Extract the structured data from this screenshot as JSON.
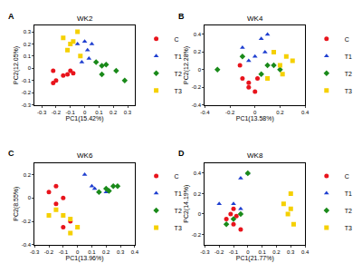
{
  "chart_data": [
    {
      "type": "scatter",
      "panel_label": "A",
      "title": "WK2",
      "x_label": "PC1(15.42%)",
      "y_label": "PC2(12.05%)",
      "xlim": [
        -0.35,
        0.35
      ],
      "xticks": [
        -0.3,
        -0.2,
        -0.1,
        0,
        0.1,
        0.2,
        0.3
      ],
      "ylim": [
        -0.3,
        0.35
      ],
      "yticks": [
        -0.3,
        -0.2,
        -0.1,
        0,
        0.1,
        0.2,
        0.3
      ],
      "grid": false,
      "legend": "right",
      "series": [
        {
          "name": "C",
          "color": "#e8141c",
          "marker": "circle",
          "x": [
            -0.22,
            -0.2,
            -0.15,
            -0.12,
            -0.1,
            -0.08,
            -0.22
          ],
          "y": [
            -0.12,
            -0.1,
            -0.06,
            -0.05,
            -0.02,
            -0.04,
            -0.02
          ]
        },
        {
          "name": "T1",
          "color": "#1f3fd0",
          "marker": "triangle-up",
          "x": [
            -0.05,
            0,
            0.02,
            0.05,
            -0.02,
            0.03
          ],
          "y": [
            0.2,
            0.22,
            0.15,
            0.2,
            0.05,
            0.08
          ]
        },
        {
          "name": "T2",
          "color": "#1a8a1a",
          "marker": "diamond",
          "x": [
            0.08,
            0.12,
            0.15,
            0.22,
            0.28,
            0.12
          ],
          "y": [
            0.05,
            0.02,
            0.03,
            -0.02,
            -0.1,
            -0.05
          ]
        },
        {
          "name": "T3",
          "color": "#f5d000",
          "marker": "square",
          "x": [
            -0.15,
            -0.12,
            -0.1,
            -0.05,
            -0.03,
            -0.08
          ],
          "y": [
            0.25,
            0.15,
            0.2,
            0.3,
            0.1,
            0.22
          ]
        }
      ]
    },
    {
      "type": "scatter",
      "panel_label": "B",
      "title": "WK4",
      "x_label": "PC1(13.58%)",
      "y_label": "PC2(12.28%)",
      "xlim": [
        -0.4,
        0.4
      ],
      "xticks": [
        -0.4,
        -0.2,
        0,
        0.2,
        0.4
      ],
      "ylim": [
        -0.4,
        0.5
      ],
      "yticks": [
        -0.4,
        -0.2,
        0,
        0.2,
        0.4
      ],
      "grid": false,
      "legend": "right",
      "series": [
        {
          "name": "C",
          "color": "#e8141c",
          "marker": "circle",
          "x": [
            -0.1,
            -0.05,
            0,
            -0.05,
            0.02,
            -0.12
          ],
          "y": [
            -0.1,
            -0.2,
            -0.25,
            -0.15,
            -0.1,
            0.05
          ]
        },
        {
          "name": "T1",
          "color": "#1f3fd0",
          "marker": "triangle-up",
          "x": [
            -0.1,
            0.05,
            0.1,
            0.08,
            0,
            -0.05
          ],
          "y": [
            0.25,
            0.35,
            0.4,
            0.2,
            0.15,
            0.1
          ]
        },
        {
          "name": "T2",
          "color": "#1a8a1a",
          "marker": "diamond",
          "x": [
            -0.3,
            -0.1,
            0.1,
            0.15,
            0.2,
            0.05
          ],
          "y": [
            0,
            0.15,
            0.05,
            0.05,
            0,
            -0.05
          ]
        },
        {
          "name": "T3",
          "color": "#f5d000",
          "marker": "square",
          "x": [
            0.2,
            0.25,
            0.3,
            0.22,
            0.1,
            0.15
          ],
          "y": [
            0.05,
            0.15,
            0.1,
            -0.05,
            -0.1,
            0.2
          ]
        }
      ]
    },
    {
      "type": "scatter",
      "panel_label": "C",
      "title": "WK6",
      "x_label": "PC1(13.96%)",
      "y_label": "PC2(8.55%)",
      "xlim": [
        -0.3,
        0.4
      ],
      "xticks": [
        -0.3,
        -0.2,
        -0.1,
        0,
        0.1,
        0.2,
        0.3,
        0.4
      ],
      "ylim": [
        -0.4,
        0.3
      ],
      "yticks": [
        -0.4,
        -0.2,
        0,
        0.2
      ],
      "grid": false,
      "legend": "right",
      "series": [
        {
          "name": "C",
          "color": "#e8141c",
          "marker": "circle",
          "x": [
            -0.2,
            -0.15,
            -0.1,
            -0.15,
            -0.05,
            -0.1
          ],
          "y": [
            0.05,
            0.1,
            0,
            -0.05,
            -0.2,
            -0.25
          ]
        },
        {
          "name": "T1",
          "color": "#1f3fd0",
          "marker": "triangle-up",
          "x": [
            0.05,
            0.1,
            0.15,
            0.12,
            0.2
          ],
          "y": [
            0.2,
            0.1,
            0.05,
            0.08,
            0.05
          ]
        },
        {
          "name": "T2",
          "color": "#1a8a1a",
          "marker": "diamond",
          "x": [
            0.15,
            0.2,
            0.25,
            0.28,
            0.22
          ],
          "y": [
            0.05,
            0.08,
            0.1,
            0.1,
            0.06
          ]
        },
        {
          "name": "T3",
          "color": "#f5d000",
          "marker": "square",
          "x": [
            -0.15,
            -0.1,
            -0.05,
            -0.05,
            -0.2,
            0
          ],
          "y": [
            -0.1,
            -0.15,
            -0.18,
            -0.3,
            -0.15,
            -0.25
          ]
        }
      ]
    },
    {
      "type": "scatter",
      "panel_label": "D",
      "title": "WK8",
      "x_label": "PC1(21.77%)",
      "y_label": "PC2(14.19%)",
      "xlim": [
        -0.3,
        0.4
      ],
      "xticks": [
        -0.3,
        -0.2,
        -0.1,
        0,
        0.1,
        0.2,
        0.3,
        0.4
      ],
      "ylim": [
        -0.3,
        0.5
      ],
      "yticks": [
        -0.2,
        0,
        0.2,
        0.4
      ],
      "grid": false,
      "legend": "right",
      "series": [
        {
          "name": "C",
          "color": "#e8141c",
          "marker": "circle",
          "x": [
            -0.15,
            -0.1,
            -0.05,
            -0.1,
            -0.08,
            -0.12
          ],
          "y": [
            -0.05,
            -0.1,
            -0.15,
            0.05,
            -0.02,
            0
          ]
        },
        {
          "name": "T1",
          "color": "#1f3fd0",
          "marker": "triangle-up",
          "x": [
            -0.05,
            0,
            -0.1,
            -0.2,
            -0.05
          ],
          "y": [
            0.35,
            0.4,
            0.1,
            0.1,
            0.05
          ]
        },
        {
          "name": "T2",
          "color": "#1a8a1a",
          "marker": "diamond",
          "x": [
            0,
            -0.05,
            -0.15,
            -0.1
          ],
          "y": [
            0.4,
            0,
            -0.1,
            -0.05
          ]
        },
        {
          "name": "T3",
          "color": "#f5d000",
          "marker": "square",
          "x": [
            0.25,
            0.3,
            0.28,
            0.32,
            0.3
          ],
          "y": [
            0.1,
            0.2,
            0,
            -0.1,
            0.05
          ]
        }
      ]
    }
  ]
}
